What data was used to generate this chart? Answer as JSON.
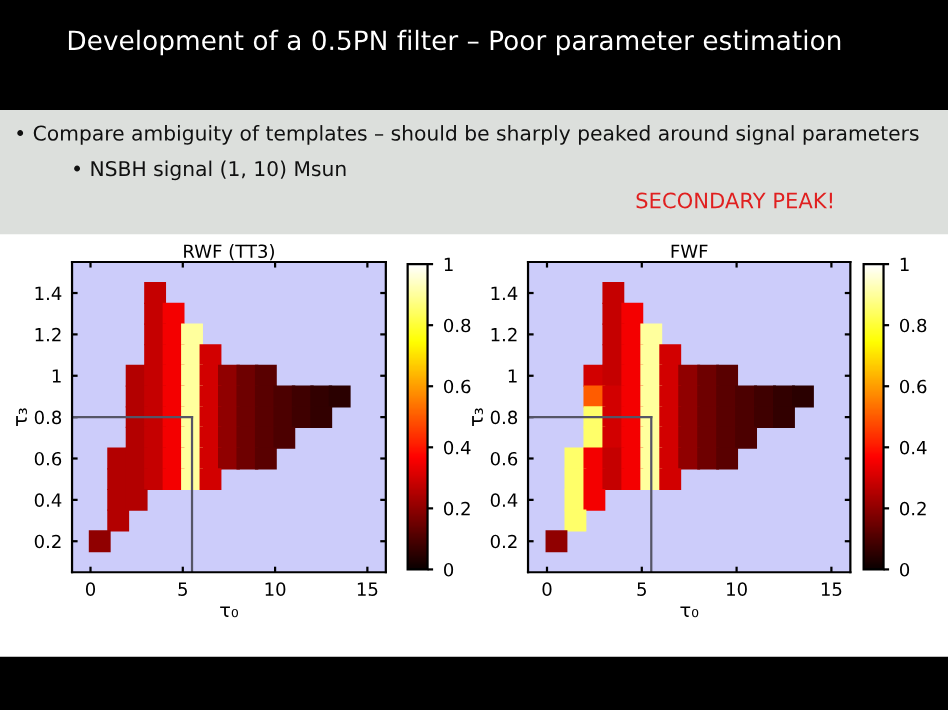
{
  "chart_data": [
    {
      "type": "scatter",
      "title": "RWF (TT3)",
      "xlabel": "τ₀",
      "ylabel": "τ₃",
      "xlim": [
        -1,
        16
      ],
      "ylim": [
        0.05,
        1.55
      ],
      "xticks": [
        0,
        5,
        10,
        15
      ],
      "yticks": [
        0.2,
        0.4,
        0.6,
        0.8,
        1,
        1.2,
        1.4
      ],
      "clim": [
        0,
        1
      ],
      "cticks": [
        0,
        0.2,
        0.4,
        0.6,
        0.8,
        1
      ],
      "marker": "square",
      "annotations": [
        "Development of a 0.5PN filter – Poor parameter estimation",
        "• Compare ambiguity of templates – should be sharply peaked around signal parameters",
        "• NSBH signal (1, 10) Msun",
        "SECONDARY PEAK!"
      ],
      "ref_lines": [
        {
          "axis": "x",
          "value": 5.5,
          "label": null,
          "color": "#555566"
        },
        {
          "axis": "y",
          "value": 0.8,
          "label": null,
          "color": "#555566"
        }
      ],
      "x": [
        3.5,
        3.5,
        4.5,
        3.5,
        4.5,
        5.5,
        3.5,
        4.5,
        5.5,
        6.5,
        2.5,
        3.5,
        4.5,
        5.5,
        6.5,
        7.5,
        8.5,
        9.5,
        2.5,
        3.5,
        4.5,
        5.5,
        6.5,
        7.5,
        8.5,
        9.5,
        10.5,
        11.5,
        12.5,
        13.5,
        2.5,
        3.5,
        4.5,
        5.5,
        6.5,
        7.5,
        8.5,
        9.5,
        10.5,
        11.5,
        12.5,
        2.5,
        3.5,
        4.5,
        5.5,
        6.5,
        7.5,
        8.5,
        9.5,
        10.5,
        1.5,
        2.5,
        3.5,
        4.5,
        5.5,
        6.5,
        7.5,
        8.5,
        9.5,
        1.5,
        2.5,
        3.5,
        4.5,
        5.5,
        6.5,
        1.5,
        2.5,
        1.5,
        0.5
      ],
      "values": [
        1.4,
        1.3,
        1.3,
        1.2,
        1.2,
        1.2,
        1.1,
        1.1,
        1.1,
        1.1,
        1,
        1,
        1,
        1,
        1,
        1,
        1,
        1,
        0.9,
        0.9,
        0.9,
        0.9,
        0.9,
        0.9,
        0.9,
        0.9,
        0.9,
        0.9,
        0.9,
        0.9,
        0.8,
        0.8,
        0.8,
        0.8,
        0.8,
        0.8,
        0.8,
        0.8,
        0.8,
        0.8,
        0.8,
        0.7,
        0.7,
        0.7,
        0.7,
        0.7,
        0.7,
        0.7,
        0.7,
        0.7,
        0.6,
        0.6,
        0.6,
        0.6,
        0.6,
        0.6,
        0.6,
        0.6,
        0.6,
        0.5,
        0.5,
        0.5,
        0.5,
        0.5,
        0.5,
        0.4,
        0.4,
        0.3,
        0.2
      ],
      "cvalues": [
        0.28,
        0.28,
        0.35,
        0.28,
        0.35,
        0.9,
        0.28,
        0.35,
        0.9,
        0.3,
        0.25,
        0.28,
        0.35,
        0.9,
        0.3,
        0.2,
        0.15,
        0.12,
        0.25,
        0.28,
        0.35,
        0.9,
        0.3,
        0.2,
        0.15,
        0.12,
        0.1,
        0.08,
        0.06,
        0.05,
        0.25,
        0.28,
        0.35,
        0.9,
        0.3,
        0.2,
        0.15,
        0.12,
        0.1,
        0.08,
        0.06,
        0.25,
        0.28,
        0.35,
        0.9,
        0.3,
        0.2,
        0.15,
        0.12,
        0.1,
        0.25,
        0.25,
        0.28,
        0.35,
        0.9,
        0.3,
        0.2,
        0.15,
        0.12,
        0.25,
        0.25,
        0.28,
        0.35,
        0.9,
        0.3,
        0.25,
        0.25,
        0.25,
        0.2
      ]
    },
    {
      "type": "scatter",
      "title": "FWF",
      "xlabel": "τ₀",
      "ylabel": "τ₃",
      "xlim": [
        -1,
        16
      ],
      "ylim": [
        0.05,
        1.55
      ],
      "xticks": [
        0,
        5,
        10,
        15
      ],
      "yticks": [
        0.2,
        0.4,
        0.6,
        0.8,
        1,
        1.2,
        1.4
      ],
      "clim": [
        0,
        1
      ],
      "cticks": [
        0,
        0.2,
        0.4,
        0.6,
        0.8,
        1
      ],
      "marker": "square",
      "ref_lines": [
        {
          "axis": "x",
          "value": 5.5,
          "label": null,
          "color": "#555566"
        },
        {
          "axis": "y",
          "value": 0.8,
          "label": null,
          "color": "#555566"
        }
      ],
      "x": [
        3.5,
        3.5,
        4.5,
        3.5,
        4.5,
        5.5,
        3.5,
        4.5,
        5.5,
        6.5,
        2.5,
        3.5,
        4.5,
        5.5,
        6.5,
        7.5,
        8.5,
        9.5,
        2.5,
        3.5,
        4.5,
        5.5,
        6.5,
        7.5,
        8.5,
        9.5,
        10.5,
        11.5,
        12.5,
        13.5,
        2.5,
        3.5,
        4.5,
        5.5,
        6.5,
        7.5,
        8.5,
        9.5,
        10.5,
        11.5,
        12.5,
        2.5,
        3.5,
        4.5,
        5.5,
        6.5,
        7.5,
        8.5,
        9.5,
        10.5,
        1.5,
        2.5,
        3.5,
        4.5,
        5.5,
        6.5,
        7.5,
        8.5,
        9.5,
        1.5,
        2.5,
        3.5,
        4.5,
        5.5,
        6.5,
        1.5,
        2.5,
        1.5,
        0.5
      ],
      "values": [
        1.4,
        1.3,
        1.3,
        1.2,
        1.2,
        1.2,
        1.1,
        1.1,
        1.1,
        1.1,
        1,
        1,
        1,
        1,
        1,
        1,
        1,
        1,
        0.9,
        0.9,
        0.9,
        0.9,
        0.9,
        0.9,
        0.9,
        0.9,
        0.9,
        0.9,
        0.9,
        0.9,
        0.8,
        0.8,
        0.8,
        0.8,
        0.8,
        0.8,
        0.8,
        0.8,
        0.8,
        0.8,
        0.8,
        0.7,
        0.7,
        0.7,
        0.7,
        0.7,
        0.7,
        0.7,
        0.7,
        0.7,
        0.6,
        0.6,
        0.6,
        0.6,
        0.6,
        0.6,
        0.6,
        0.6,
        0.6,
        0.5,
        0.5,
        0.5,
        0.5,
        0.5,
        0.5,
        0.4,
        0.4,
        0.3,
        0.2
      ],
      "cvalues": [
        0.28,
        0.28,
        0.35,
        0.28,
        0.35,
        0.9,
        0.28,
        0.35,
        0.9,
        0.3,
        0.3,
        0.28,
        0.35,
        0.9,
        0.3,
        0.2,
        0.15,
        0.12,
        0.5,
        0.3,
        0.35,
        0.9,
        0.3,
        0.2,
        0.15,
        0.12,
        0.1,
        0.08,
        0.06,
        0.05,
        0.85,
        0.3,
        0.35,
        0.9,
        0.3,
        0.2,
        0.15,
        0.12,
        0.1,
        0.08,
        0.06,
        0.85,
        0.3,
        0.35,
        0.9,
        0.3,
        0.2,
        0.15,
        0.12,
        0.1,
        0.85,
        0.35,
        0.28,
        0.35,
        0.9,
        0.3,
        0.2,
        0.15,
        0.12,
        0.85,
        0.35,
        0.28,
        0.35,
        0.9,
        0.3,
        0.85,
        0.35,
        0.85,
        0.2
      ]
    }
  ]
}
